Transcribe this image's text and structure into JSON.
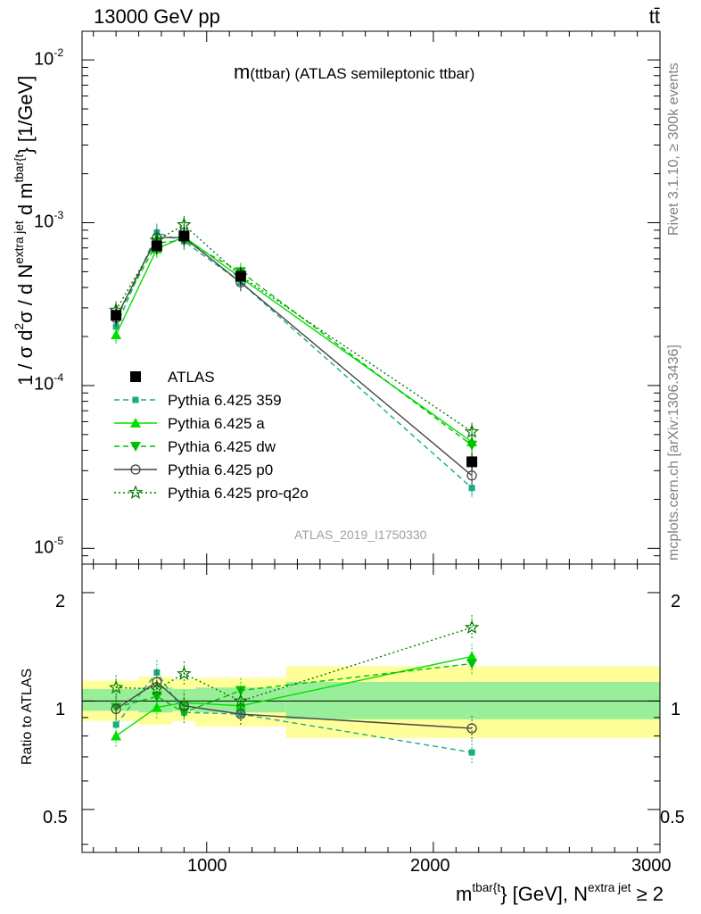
{
  "header": {
    "left": "13000 GeV pp",
    "right": "tt̄"
  },
  "plot_title": {
    "main": "m",
    "suffix": "(ttbar) (ATLAS semileptonic ttbar)"
  },
  "watermark": "ATLAS_2019_I1750330",
  "side_labels": {
    "rivet": "Rivet 3.1.10, ≥ 300k events",
    "mcplots": "mcplots.cern.ch [arXiv:1306.3436]"
  },
  "axis_labels": {
    "y_main": {
      "p1": "1 / σ d",
      "sup1": "2",
      "p2": "σ / d N",
      "sup2": "extra jet",
      "p3": " d m",
      "sup3": "tbar{t",
      "p4": "} [1/GeV]"
    },
    "y_ratio": "Ratio to ATLAS",
    "x": {
      "p1": "m",
      "sup1": "tbar{t",
      "p2": "} [GeV], N",
      "sup2": "extra jet",
      "p3": " ≥ 2"
    }
  },
  "ticks": {
    "main_y": [
      {
        "base": "10",
        "exp": "-2"
      },
      {
        "base": "10",
        "exp": "-3"
      },
      {
        "base": "10",
        "exp": "-4"
      },
      {
        "base": "10",
        "exp": "-5"
      }
    ],
    "ratio_y": [
      "2",
      "1",
      "0.5"
    ],
    "x": [
      "1000",
      "2000",
      "3000"
    ]
  },
  "colors": {
    "atlas": "#000000",
    "p359": "#1aaa8a",
    "pa": "#00e000",
    "pdw": "#00c000",
    "pp0": "#444444",
    "pq2o": "#007a00",
    "band_outer": "#ffff99",
    "band_inner": "#99ee99"
  },
  "chart_data": {
    "type": "line",
    "x_scale": "linear",
    "y_scale": "log",
    "xlim": [
      450,
      3000
    ],
    "ylim": [
      8e-06,
      0.015
    ],
    "ratio_ylim": [
      0.38,
      2.4
    ],
    "ratio_scale": "log",
    "legend_position": "middle-left",
    "bins": [
      {
        "lo": 450,
        "hi": 700,
        "x": 600
      },
      {
        "lo": 700,
        "hi": 850,
        "x": 780
      },
      {
        "lo": 850,
        "hi": 950,
        "x": 900
      },
      {
        "lo": 950,
        "hi": 1350,
        "x": 1150
      },
      {
        "lo": 1350,
        "hi": 3000,
        "x": 2170
      }
    ],
    "band_outer": [
      [
        0.88,
        1.14
      ],
      [
        0.86,
        1.17
      ],
      [
        0.88,
        1.15
      ],
      [
        0.85,
        1.16
      ],
      [
        0.79,
        1.25
      ]
    ],
    "band_inner": [
      [
        0.94,
        1.08
      ],
      [
        0.93,
        1.09
      ],
      [
        0.94,
        1.08
      ],
      [
        0.93,
        1.09
      ],
      [
        0.89,
        1.13
      ]
    ],
    "series": [
      {
        "name": "ATLAS",
        "x": [
          600,
          780,
          900,
          1150,
          2170
        ],
        "values": [
          0.00027,
          0.00072,
          0.00083,
          0.00047,
          3.4e-05
        ],
        "ratio": [
          1,
          1,
          1,
          1,
          1
        ]
      },
      {
        "name": "Pythia 6.425 359",
        "x": [
          600,
          780,
          900,
          1150,
          2170
        ],
        "values": [
          0.00023,
          0.00087,
          0.00077,
          0.00043,
          2.35e-05
        ],
        "ratio": [
          0.86,
          1.2,
          0.93,
          0.92,
          0.72
        ]
      },
      {
        "name": "Pythia 6.425 a",
        "x": [
          600,
          780,
          900,
          1150,
          2170
        ],
        "values": [
          0.000205,
          0.00069,
          0.00082,
          0.00046,
          4.5e-05
        ],
        "ratio": [
          0.8,
          0.96,
          0.99,
          0.97,
          1.33
        ]
      },
      {
        "name": "Pythia 6.425 dw",
        "x": [
          600,
          780,
          900,
          1150,
          2170
        ],
        "values": [
          0.00026,
          0.00075,
          0.00078,
          0.0005,
          4.3e-05
        ],
        "ratio": [
          0.96,
          1.03,
          0.93,
          1.07,
          1.27
        ]
      },
      {
        "name": "Pythia 6.425 p0",
        "x": [
          600,
          780,
          900,
          1150,
          2170
        ],
        "values": [
          0.00026,
          0.00081,
          0.00081,
          0.00043,
          2.8e-05
        ],
        "ratio": [
          0.95,
          1.13,
          0.97,
          0.92,
          0.84
        ]
      },
      {
        "name": "Pythia 6.425 pro-q2o",
        "x": [
          600,
          780,
          900,
          1150,
          2170
        ],
        "values": [
          0.00029,
          0.00078,
          0.00097,
          0.00047,
          5.2e-05
        ],
        "ratio": [
          1.09,
          1.08,
          1.19,
          1.0,
          1.6
        ]
      }
    ]
  }
}
